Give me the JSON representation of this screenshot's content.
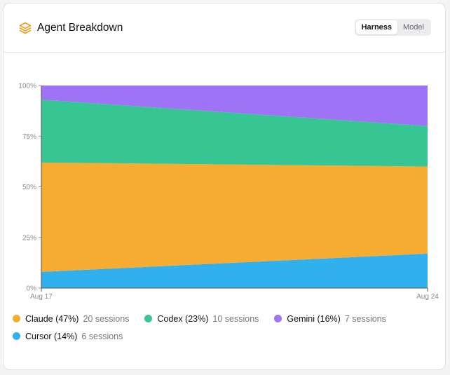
{
  "card": {
    "title": "Agent Breakdown",
    "icon": "layers-icon",
    "toggle": {
      "options": [
        "Harness",
        "Model"
      ],
      "selected": "Harness"
    }
  },
  "chart_data": {
    "type": "area",
    "stacked": true,
    "normalized": true,
    "x": [
      "Aug 17",
      "Aug 24"
    ],
    "y_ticks": [
      "0%",
      "25%",
      "50%",
      "75%",
      "100%"
    ],
    "ylim": [
      0,
      100
    ],
    "series": [
      {
        "name": "Cursor",
        "values": [
          8,
          17
        ],
        "color": "#30b0ec"
      },
      {
        "name": "Claude",
        "values": [
          54,
          43
        ],
        "color": "#f6ac31"
      },
      {
        "name": "Codex",
        "values": [
          31,
          20
        ],
        "color": "#36c593"
      },
      {
        "name": "Gemini",
        "values": [
          7,
          20
        ],
        "color": "#9f73f6"
      }
    ]
  },
  "legend": [
    {
      "label": "Claude (47%)",
      "sessions": "20 sessions",
      "color": "#f6ac31"
    },
    {
      "label": "Codex (23%)",
      "sessions": "10 sessions",
      "color": "#36c593"
    },
    {
      "label": "Gemini (16%)",
      "sessions": "7 sessions",
      "color": "#9f73f6"
    },
    {
      "label": "Cursor (14%)",
      "sessions": "6 sessions",
      "color": "#30b0ec"
    }
  ]
}
